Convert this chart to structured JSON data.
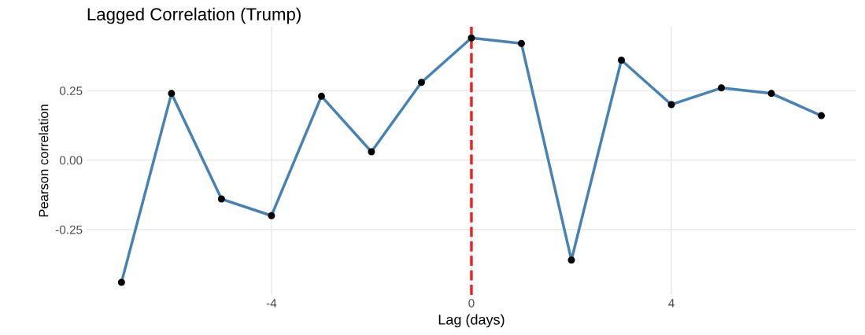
{
  "chart_data": {
    "type": "line",
    "title": "Lagged Correlation (Trump)",
    "xlabel": "Lag (days)",
    "ylabel": "Pearson correlation",
    "x": [
      -7,
      -6,
      -5,
      -4,
      -3,
      -2,
      -1,
      0,
      1,
      2,
      3,
      4,
      5,
      6,
      7
    ],
    "series": [
      {
        "color": "#4682b4",
        "values": [
          -0.44,
          0.24,
          -0.14,
          -0.2,
          0.23,
          0.03,
          0.28,
          0.44,
          0.42,
          -0.36,
          0.36,
          0.2,
          0.26,
          0.24,
          0.16
        ]
      }
    ],
    "xlim": [
      -7.7,
      7.7
    ],
    "xticks": [
      -4,
      0,
      4
    ],
    "ylim": [
      -0.485,
      0.48
    ],
    "yticks": [
      {
        "value": -0.25,
        "label": "-0.25"
      },
      {
        "value": 0,
        "label": "0.00"
      },
      {
        "value": 0.25,
        "label": "0.25"
      }
    ],
    "ref_lines": [
      {
        "axis": "x",
        "value": 0,
        "color": "#ee2222",
        "line_style": "dashed"
      }
    ],
    "grid": true,
    "marker": "circle",
    "line_style": "solid"
  }
}
